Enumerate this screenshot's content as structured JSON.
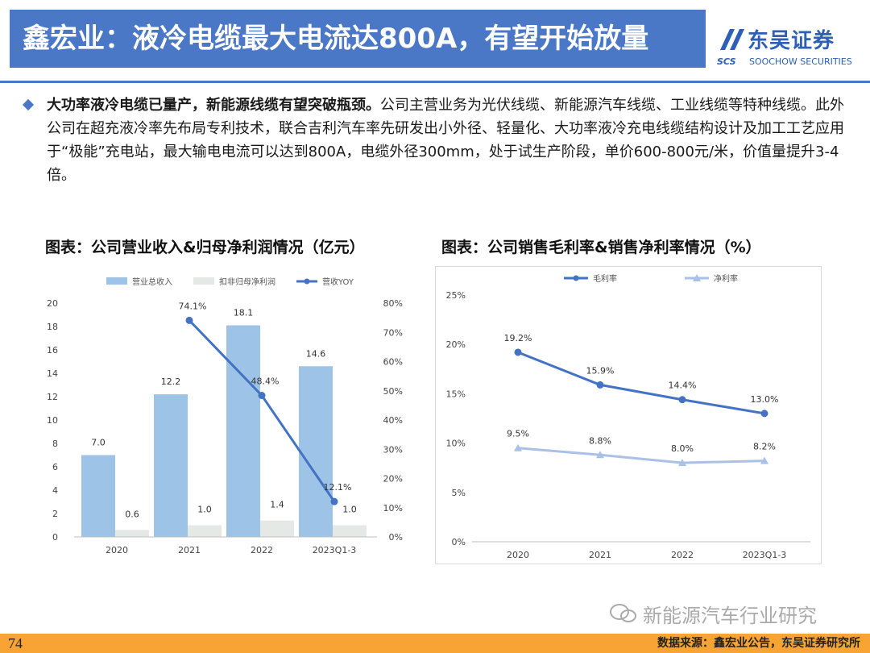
{
  "header": {
    "title": "鑫宏业：液冷电缆最大电流达800A，有望开始放量",
    "logo_cn": "东吴证券",
    "logo_en": "SOOCHOW SECURITIES",
    "logo_abbr": "SCS",
    "brand_color": "#4a78c6"
  },
  "body": {
    "lead_bold": "大功率液冷电缆已量产，新能源线缆有望突破瓶颈。",
    "text": "公司主营业务为光伏线缆、新能源汽车线缆、工业线缆等特种线缆。此外公司在超充液冷率先布局专利技术，联合吉利汽车率先研发出小外径、轻量化、大功率液冷充电线缆结构设计及加工工艺应用于“极能”充电站，最大输电电流可以达到800A，电缆外径300mm，处于试生产阶段，单价600-800元/米，价值量提升3-4倍。"
  },
  "chart_titles": {
    "left": "图表：公司营业收入&归母净利润情况（亿元）",
    "right": "图表：公司销售毛利率&销售净利率情况（%）"
  },
  "chart_data": [
    {
      "type": "bar",
      "categories": [
        "2020",
        "2021",
        "2022",
        "2023Q1-3"
      ],
      "series": [
        {
          "name": "营业总收入",
          "kind": "bar",
          "axis": "left",
          "color": "#9dc3e6",
          "values": [
            7.0,
            12.2,
            18.1,
            14.6
          ],
          "labels": [
            "7.0",
            "12.2",
            "18.1",
            "14.6"
          ]
        },
        {
          "name": "扣非归母净利润",
          "kind": "bar",
          "axis": "left",
          "color": "#e4e9e6",
          "values": [
            0.6,
            1.0,
            1.4,
            1.0
          ],
          "labels": [
            "0.6",
            "1.0",
            "1.4",
            "1.0"
          ]
        },
        {
          "name": "营收YOY",
          "kind": "line",
          "axis": "right",
          "color": "#4472c4",
          "values": [
            null,
            74.1,
            48.4,
            12.1
          ],
          "labels": [
            "",
            "74.1%",
            "48.4%",
            "12.1%"
          ]
        }
      ],
      "ylim": [
        0,
        20
      ],
      "yticks": [
        "0",
        "2",
        "4",
        "6",
        "8",
        "10",
        "12",
        "14",
        "16",
        "18",
        "20"
      ],
      "y2lim": [
        0,
        80
      ],
      "y2ticks": [
        "0%",
        "10%",
        "20%",
        "30%",
        "40%",
        "50%",
        "60%",
        "70%",
        "80%"
      ],
      "grid": false,
      "legend": "top"
    },
    {
      "type": "line",
      "categories": [
        "2020",
        "2021",
        "2022",
        "2023Q1-3"
      ],
      "series": [
        {
          "name": "毛利率",
          "color": "#4472c4",
          "marker": "circle",
          "values": [
            19.2,
            15.9,
            14.4,
            13.0
          ],
          "labels": [
            "19.2%",
            "15.9%",
            "14.4%",
            "13.0%"
          ]
        },
        {
          "name": "净利率",
          "color": "#a9c1e6",
          "marker": "triangle",
          "values": [
            9.5,
            8.8,
            8.0,
            8.2
          ],
          "labels": [
            "9.5%",
            "8.8%",
            "8.0%",
            "8.2%"
          ]
        }
      ],
      "ylim": [
        0,
        25
      ],
      "yticks": [
        "0%",
        "5%",
        "10%",
        "15%",
        "20%",
        "25%"
      ],
      "grid": false,
      "legend": "top"
    }
  ],
  "watermark": "新能源汽车行业研究",
  "footer": {
    "page_number": "74",
    "source": "数据来源：鑫宏业公告，东吴证券研究所",
    "bar_color": "#f7a434"
  }
}
